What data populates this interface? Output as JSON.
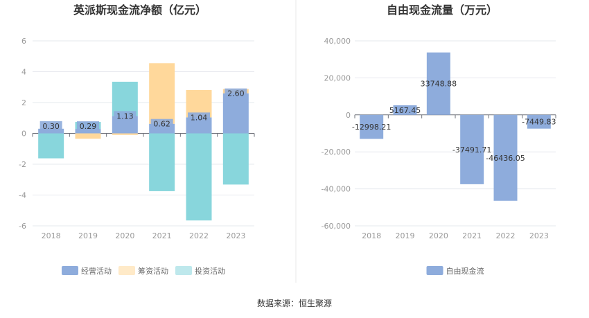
{
  "footer": {
    "source": "数据来源：恒生聚源"
  },
  "chart_data": [
    {
      "type": "bar",
      "stacked": true,
      "title": "英派斯现金流净额（亿元）",
      "categories": [
        "2018",
        "2019",
        "2020",
        "2021",
        "2022",
        "2023"
      ],
      "ylim": [
        -6,
        6
      ],
      "yticks": [
        "6",
        "4",
        "2",
        "0",
        "-2",
        "-4",
        "-6"
      ],
      "yticks_values": [
        6,
        4,
        2,
        0,
        -2,
        -4,
        -6
      ],
      "grid": true,
      "legend_position": "bottom",
      "series": [
        {
          "name": "经营活动",
          "color": "#8eacdc",
          "values": [
            0.3,
            0.29,
            1.13,
            0.62,
            1.04,
            2.6
          ]
        },
        {
          "name": "筹资活动",
          "color": "#ffd89b",
          "values": [
            0.0,
            -0.35,
            -0.1,
            3.93,
            1.77,
            0.28
          ]
        },
        {
          "name": "投资活动",
          "color": "#88d6dc",
          "values": [
            -1.62,
            0.45,
            2.22,
            -3.75,
            -5.65,
            -3.32
          ]
        }
      ],
      "data_labels": [
        "0.30",
        "0.29",
        "1.13",
        "0.62",
        "1.04",
        "2.60"
      ]
    },
    {
      "type": "bar",
      "title": "自由现金流量（万元）",
      "categories": [
        "2018",
        "2019",
        "2020",
        "2021",
        "2022",
        "2023"
      ],
      "ylim": [
        -60000,
        40000
      ],
      "yticks": [
        "40,000",
        "20,000",
        "0",
        "-20,000",
        "-40,000",
        "-60,000"
      ],
      "yticks_values": [
        40000,
        20000,
        0,
        -20000,
        -40000,
        -60000
      ],
      "grid": true,
      "legend_position": "bottom",
      "series": [
        {
          "name": "自由现金流",
          "color": "#8eacdc",
          "values": [
            -12998.21,
            5167.45,
            33748.88,
            -37491.71,
            -46436.05,
            -7449.83
          ]
        }
      ],
      "data_labels": [
        "-12998.21",
        "5167.45",
        "33748.88",
        "-37491.71",
        "-46436.05",
        "-7449.83"
      ]
    }
  ]
}
